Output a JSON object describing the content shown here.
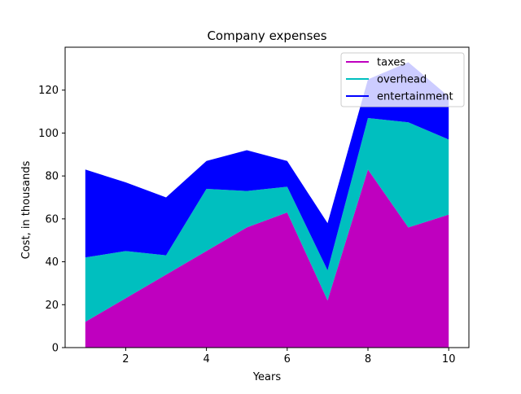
{
  "chart_data": {
    "type": "area",
    "stacked": true,
    "title": "Company expenses",
    "xlabel": "Years",
    "ylabel": "Cost, in thousands",
    "x": [
      1,
      2,
      3,
      4,
      5,
      6,
      7,
      8,
      9,
      10
    ],
    "xlim": [
      0.5,
      10.5
    ],
    "ylim": [
      0,
      140
    ],
    "xticks": [
      2,
      4,
      6,
      8,
      10
    ],
    "yticks": [
      0,
      20,
      40,
      60,
      80,
      100,
      120
    ],
    "grid": false,
    "legend_position": "upper right",
    "series": [
      {
        "name": "taxes",
        "color": "#bf00bf",
        "values": [
          12,
          23,
          34,
          45,
          56,
          63,
          22,
          83,
          56,
          62
        ]
      },
      {
        "name": "overhead",
        "color": "#00bfbf",
        "values": [
          30,
          22,
          9,
          29,
          17,
          12,
          14,
          24,
          49,
          35
        ]
      },
      {
        "name": "entertainment",
        "color": "#0000ff",
        "values": [
          41,
          32,
          27,
          13,
          19,
          12,
          22,
          18,
          28,
          20
        ]
      }
    ]
  }
}
